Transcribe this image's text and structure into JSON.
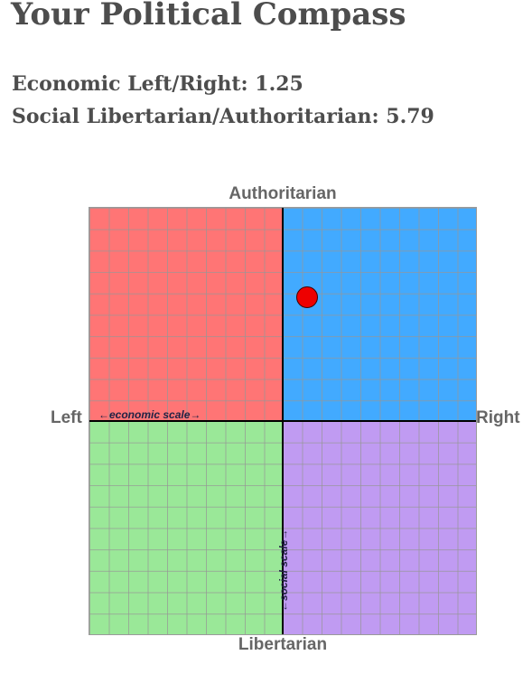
{
  "page": {
    "title": "Your Political Compass"
  },
  "scores": {
    "economic_text": "Economic Left/Right: 1.25",
    "social_text": "Social Libertarian/Authoritarian: 5.79",
    "economic": 1.25,
    "social": 5.79
  },
  "compass": {
    "labels": {
      "top": "Authoritarian",
      "bottom": "Libertarian",
      "left": "Left",
      "right": "Right"
    },
    "economic_scale": "←economic scale→",
    "social_scale": "←social scale→",
    "range": [
      -10,
      10
    ],
    "colors": {
      "authoritarian_left": "#ff7575",
      "authoritarian_right": "#42aaff",
      "libertarian_left": "#9ae898",
      "libertarian_right": "#c09bf2",
      "dot": "#ee0000"
    }
  }
}
